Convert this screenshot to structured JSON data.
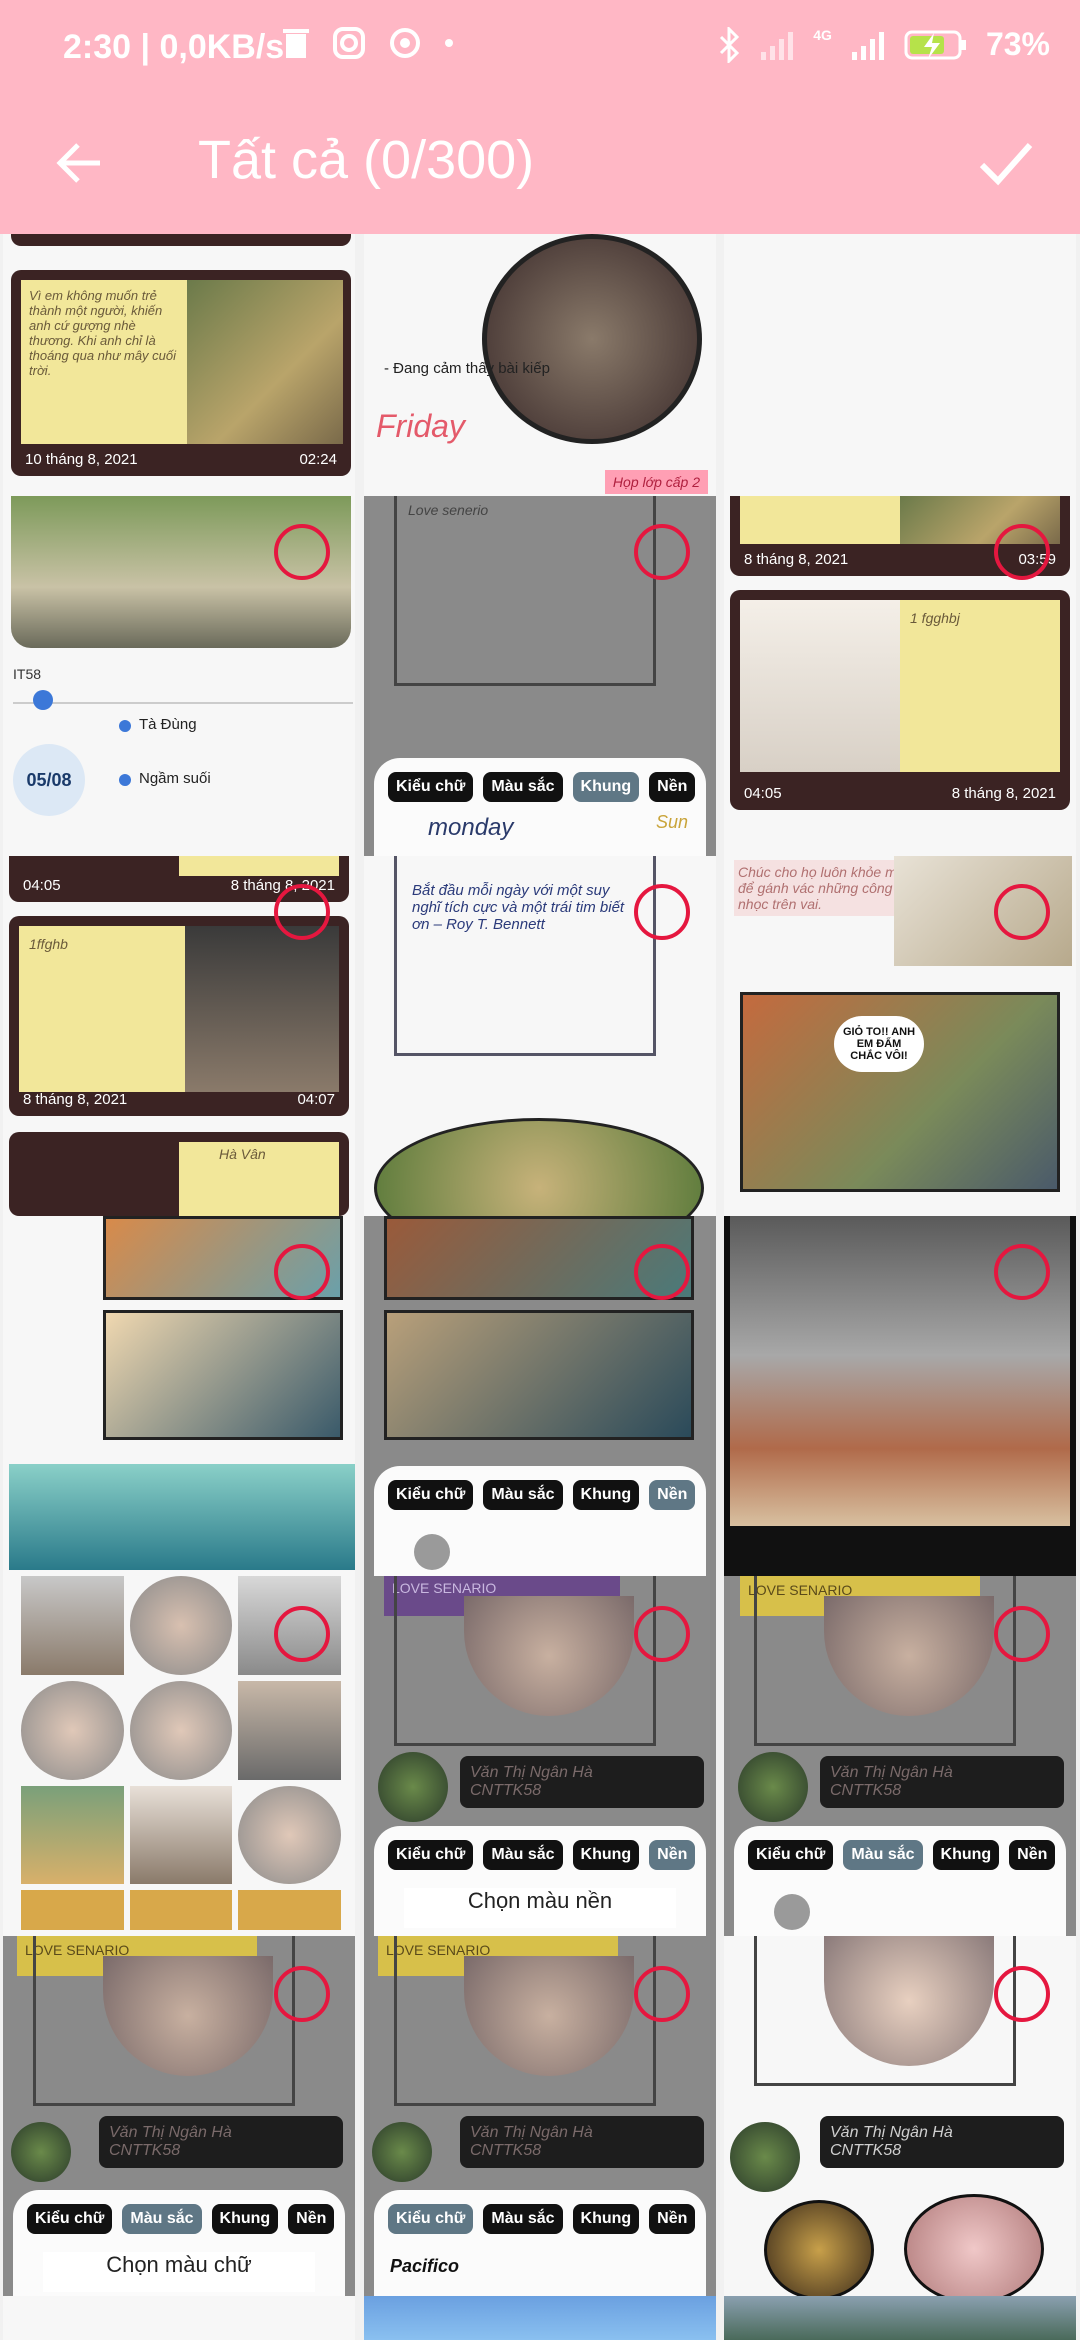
{
  "status_bar": {
    "time": "2:30",
    "speed": "0,0KB/s",
    "network": "4G",
    "battery": "73%"
  },
  "app_bar": {
    "title": "Tất cả (0/300)"
  },
  "editor_tabs": {
    "font": "Kiểu chữ",
    "color": "Màu sắc",
    "frame": "Khung",
    "background": "Nền"
  },
  "cells": {
    "c1": {
      "note_text": "Vì em không muốn trẻ thành một người, khiến anh cứ gượng nhè thương. Khi anh chỉ là thoáng qua như mây cuối trời.",
      "date": "10 tháng 8, 2021",
      "time": "02:24"
    },
    "c2": {
      "status": "- Đang cảm thấy bài kiếp",
      "title": "Friday",
      "badge": "Họp lớp cấp 2"
    },
    "c4": {
      "label": "IT58",
      "date": "05/08",
      "place1": "Tà Đùng",
      "place2": "Ngầm suối"
    },
    "c5": {
      "heading": "Love senerio"
    },
    "c6": {
      "date": "8 tháng 8, 2021",
      "time": "03:59",
      "note": "1 fgghbj",
      "time2": "04:05",
      "date2": "8 tháng 8, 2021"
    },
    "c7": {
      "time": "04:05",
      "date": "8 tháng 8, 2021",
      "note": "1ffghb",
      "date2": "8 tháng 8, 2021",
      "time2": "04:07",
      "tag": "Hà Vân"
    },
    "c8": {
      "quote": "Bắt đầu mỗi ngày với một suy nghĩ tích cực và một trái tim biết ơn – Roy T. Bennett",
      "day": "monday",
      "sun": "Sun"
    },
    "c9": {
      "quote": "Chúc cho họ luôn khỏe mạnh, đủ sức để gánh vác những công việc nặng nhọc trên vai.",
      "speech": "GIỎ TO!! ANH EM ĐẨM CHẮC VÔI!"
    },
    "c14": {
      "label": "LOVE SENARIO",
      "name": "Văn Thị Ngân Hà",
      "class": "CNTTK58"
    },
    "c15": {
      "label": "LOVE SENARIO"
    },
    "sheet_c14": {
      "sub": "Chọn màu nền"
    },
    "sheet_c16": {
      "sub": "Chọn màu chữ"
    },
    "c18": {
      "font_name": "Pacifico"
    }
  },
  "colors": {
    "header": "#ffb7c5",
    "selection_ring": "#e5173f",
    "card_brown": "#3b2323",
    "note_yellow": "#f2e79a"
  },
  "icons": [
    "back-arrow-icon",
    "check-icon",
    "bluetooth-icon",
    "signal-icon",
    "battery-charging-icon",
    "trash-icon",
    "instagram-icon",
    "vpn-icon",
    "heart-icon",
    "pencil-icon"
  ]
}
